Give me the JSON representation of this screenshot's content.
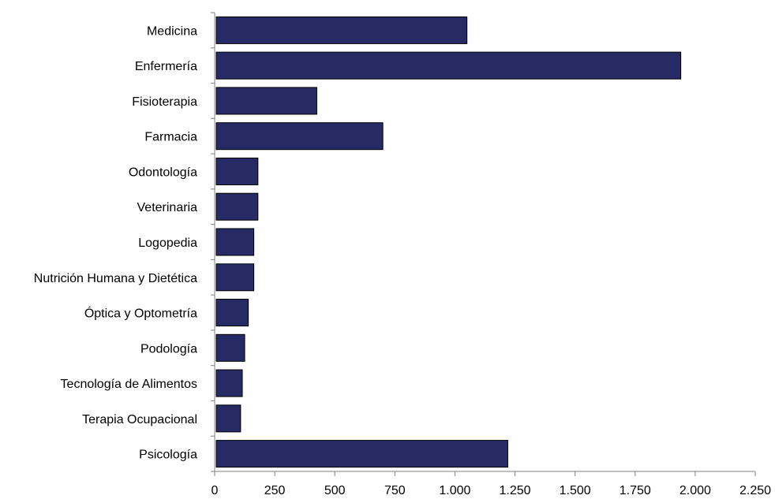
{
  "chart_data": {
    "type": "bar",
    "orientation": "horizontal",
    "categories": [
      "Medicina",
      "Enfermería",
      "Fisioterapia",
      "Farmacia",
      "Odontología",
      "Veterinaria",
      "Logopedia",
      "Nutrición Humana y Dietética",
      "Óptica y Optometría",
      "Podología",
      "Tecnología de Alimentos",
      "Terapia Ocupacional",
      "Psicología"
    ],
    "values": [
      1050,
      1940,
      425,
      700,
      180,
      180,
      163,
      163,
      140,
      125,
      115,
      108,
      1220
    ],
    "xlim": [
      0,
      2250
    ],
    "x_ticks": [
      0,
      250,
      500,
      750,
      1000,
      1250,
      1500,
      1750,
      2000,
      2250
    ],
    "x_tick_labels": [
      "0",
      "250",
      "500",
      "750",
      "1.000",
      "1.250",
      "1.500",
      "1.750",
      "2.000",
      "2.250"
    ],
    "title": "",
    "xlabel": "",
    "ylabel": "",
    "grid": false,
    "legend": "none",
    "bar_color": "#262b66",
    "axis_color": "#808080"
  }
}
